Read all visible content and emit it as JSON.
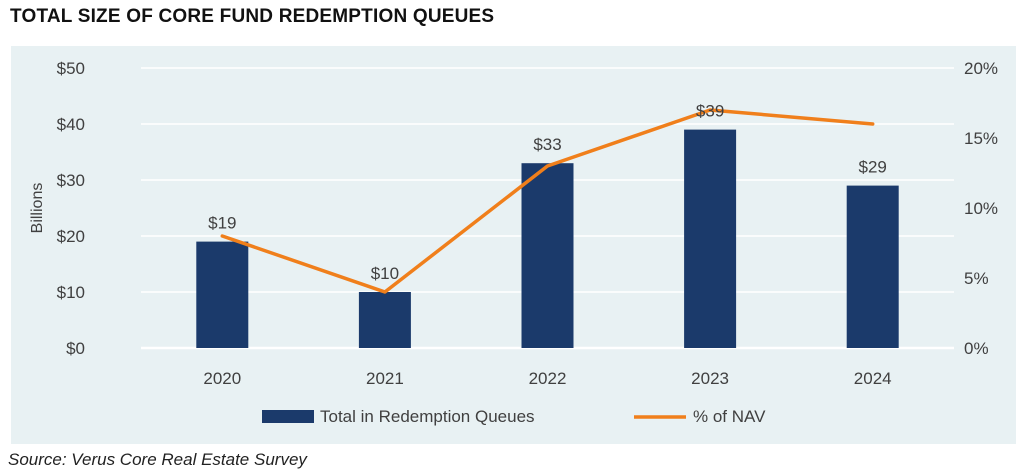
{
  "title": "TOTAL SIZE OF CORE FUND REDEMPTION QUEUES",
  "source": "Source: Verus Core Real Estate Survey",
  "colors": {
    "bar": "#1b3a6b",
    "line": "#f07f1b",
    "panel": "#e8f1f3",
    "grid": "#ffffff"
  },
  "chart_data": {
    "type": "bar",
    "title": "",
    "categories": [
      "2020",
      "2021",
      "2022",
      "2023",
      "2024"
    ],
    "ylabel": "Billions",
    "ylim": [
      0,
      50
    ],
    "y_ticks": [
      "$0",
      "$10",
      "$20",
      "$30",
      "$40",
      "$50"
    ],
    "y2lim": [
      0,
      20
    ],
    "y2_ticks": [
      "0%",
      "5%",
      "10%",
      "15%",
      "20%"
    ],
    "grid": true,
    "legend_position": "bottom",
    "series": [
      {
        "name": "Total in Redemption Queues",
        "type": "bar",
        "axis": "left",
        "values": [
          19,
          10,
          33,
          39,
          29
        ],
        "labels": [
          "$19",
          "$10",
          "$33",
          "$39",
          "$29"
        ]
      },
      {
        "name": "% of NAV",
        "type": "line",
        "axis": "right",
        "values": [
          8,
          4,
          13,
          17,
          16
        ]
      }
    ]
  }
}
